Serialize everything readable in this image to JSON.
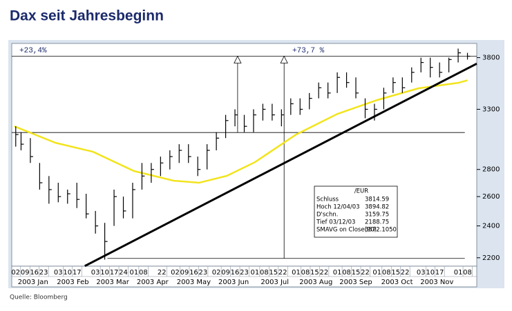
{
  "chart_data": {
    "type": "ohlc",
    "title": "Dax seit Jahresbeginn",
    "source": "Quelle: Bloomberg",
    "log_scale": true,
    "xlim": [
      "2002-12-30",
      "2003-12-15"
    ],
    "ylim": [
      2150,
      3950
    ],
    "yticks": [
      2200,
      2400,
      2600,
      2800,
      3300,
      3800
    ],
    "xticks": [
      {
        "value": "2003-01-02",
        "label": "02"
      },
      {
        "value": "2003-01-09",
        "label": "09"
      },
      {
        "value": "2003-01-16",
        "label": "16"
      },
      {
        "value": "2003-01-23",
        "label": "23"
      },
      {
        "value": "2003-02-03",
        "label": "03"
      },
      {
        "value": "2003-02-10",
        "label": "10"
      },
      {
        "value": "2003-02-17",
        "label": "17"
      },
      {
        "value": "2003-03-03",
        "label": "03"
      },
      {
        "value": "2003-03-10",
        "label": "10"
      },
      {
        "value": "2003-03-17",
        "label": "17"
      },
      {
        "value": "2003-03-24",
        "label": "24"
      },
      {
        "value": "2003-04-01",
        "label": "01"
      },
      {
        "value": "2003-04-08",
        "label": "08"
      },
      {
        "value": "2003-04-22",
        "label": "22"
      },
      {
        "value": "2003-05-02",
        "label": "02"
      },
      {
        "value": "2003-05-09",
        "label": "09"
      },
      {
        "value": "2003-05-16",
        "label": "16"
      },
      {
        "value": "2003-05-23",
        "label": "23"
      },
      {
        "value": "2003-06-02",
        "label": "02"
      },
      {
        "value": "2003-06-09",
        "label": "09"
      },
      {
        "value": "2003-06-16",
        "label": "16"
      },
      {
        "value": "2003-06-23",
        "label": "23"
      },
      {
        "value": "2003-07-01",
        "label": "01"
      },
      {
        "value": "2003-07-08",
        "label": "08"
      },
      {
        "value": "2003-07-15",
        "label": "15"
      },
      {
        "value": "2003-07-22",
        "label": "22"
      },
      {
        "value": "2003-08-01",
        "label": "01"
      },
      {
        "value": "2003-08-08",
        "label": "08"
      },
      {
        "value": "2003-08-15",
        "label": "15"
      },
      {
        "value": "2003-08-22",
        "label": "22"
      },
      {
        "value": "2003-09-01",
        "label": "01"
      },
      {
        "value": "2003-09-08",
        "label": "08"
      },
      {
        "value": "2003-09-15",
        "label": "15"
      },
      {
        "value": "2003-09-22",
        "label": "22"
      },
      {
        "value": "2003-10-01",
        "label": "01"
      },
      {
        "value": "2003-10-08",
        "label": "08"
      },
      {
        "value": "2003-10-15",
        "label": "15"
      },
      {
        "value": "2003-10-22",
        "label": "22"
      },
      {
        "value": "2003-11-03",
        "label": "03"
      },
      {
        "value": "2003-11-10",
        "label": "10"
      },
      {
        "value": "2003-11-17",
        "label": "17"
      },
      {
        "value": "2003-12-01",
        "label": "01"
      },
      {
        "value": "2003-12-08",
        "label": "08"
      }
    ],
    "months": [
      {
        "value": "2003-01-15",
        "label": "2003 Jan"
      },
      {
        "value": "2003-02-14",
        "label": "2003 Feb"
      },
      {
        "value": "2003-03-16",
        "label": "2003 Mar"
      },
      {
        "value": "2003-04-15",
        "label": "2003 Apr"
      },
      {
        "value": "2003-05-16",
        "label": "2003 May"
      },
      {
        "value": "2003-06-15",
        "label": "2003 Jun"
      },
      {
        "value": "2003-07-16",
        "label": "2003 Jul"
      },
      {
        "value": "2003-08-16",
        "label": "2003 Aug"
      },
      {
        "value": "2003-09-15",
        "label": "2003 Sep"
      },
      {
        "value": "2003-10-16",
        "label": "2003 Oct"
      },
      {
        "value": "2003-11-15",
        "label": "2003 Nov"
      }
    ],
    "ohlc": {
      "color": "#000000",
      "x": [
        "2003-01-02",
        "2003-01-06",
        "2003-01-13",
        "2003-01-20",
        "2003-01-27",
        "2003-02-03",
        "2003-02-10",
        "2003-02-17",
        "2003-02-24",
        "2003-03-03",
        "2003-03-10",
        "2003-03-17",
        "2003-03-24",
        "2003-03-31",
        "2003-04-07",
        "2003-04-14",
        "2003-04-21",
        "2003-04-28",
        "2003-05-05",
        "2003-05-12",
        "2003-05-19",
        "2003-05-26",
        "2003-06-02",
        "2003-06-09",
        "2003-06-16",
        "2003-06-23",
        "2003-06-30",
        "2003-07-07",
        "2003-07-14",
        "2003-07-21",
        "2003-07-28",
        "2003-08-04",
        "2003-08-11",
        "2003-08-18",
        "2003-08-25",
        "2003-09-01",
        "2003-09-08",
        "2003-09-15",
        "2003-09-22",
        "2003-09-29",
        "2003-10-06",
        "2003-10-13",
        "2003-10-20",
        "2003-10-27",
        "2003-11-03",
        "2003-11-10",
        "2003-11-17",
        "2003-11-24",
        "2003-12-01",
        "2003-12-08"
      ],
      "high": [
        3150,
        3100,
        3050,
        2850,
        2750,
        2700,
        2650,
        2700,
        2620,
        2500,
        2420,
        2650,
        2600,
        2700,
        2850,
        2850,
        2900,
        2950,
        3000,
        3000,
        2900,
        3000,
        3100,
        3250,
        3300,
        3250,
        3300,
        3350,
        3350,
        3300,
        3400,
        3400,
        3450,
        3550,
        3550,
        3650,
        3650,
        3600,
        3400,
        3350,
        3500,
        3600,
        3600,
        3700,
        3800,
        3800,
        3750,
        3800,
        3894.82,
        3850
      ],
      "low": [
        2980,
        2950,
        2850,
        2650,
        2550,
        2560,
        2550,
        2520,
        2450,
        2350,
        2188.75,
        2400,
        2450,
        2450,
        2650,
        2700,
        2750,
        2800,
        2850,
        2850,
        2750,
        2800,
        2950,
        3050,
        3150,
        3100,
        3100,
        3200,
        3200,
        3150,
        3250,
        3250,
        3300,
        3400,
        3400,
        3450,
        3500,
        3400,
        3220,
        3200,
        3300,
        3450,
        3450,
        3550,
        3650,
        3600,
        3600,
        3650,
        3750,
        3780
      ],
      "close": [
        3080,
        3000,
        2900,
        2700,
        2650,
        2600,
        2620,
        2580,
        2480,
        2400,
        2300,
        2600,
        2500,
        2650,
        2750,
        2800,
        2850,
        2900,
        2950,
        2900,
        2800,
        2950,
        3050,
        3200,
        3250,
        3150,
        3250,
        3300,
        3250,
        3250,
        3350,
        3300,
        3400,
        3500,
        3450,
        3600,
        3550,
        3450,
        3300,
        3300,
        3450,
        3550,
        3500,
        3650,
        3750,
        3700,
        3650,
        3780,
        3850,
        3814.59
      ]
    },
    "sma": {
      "color": "#f2e41c",
      "x": [
        "2003-01-01",
        "2003-02-01",
        "2003-03-01",
        "2003-04-01",
        "2003-05-01",
        "2003-05-20",
        "2003-06-10",
        "2003-07-01",
        "2003-08-01",
        "2003-09-01",
        "2003-10-01",
        "2003-11-01",
        "2003-12-01",
        "2003-12-08"
      ],
      "values": [
        3150,
        3011,
        2939,
        2788,
        2715,
        2700,
        2752,
        2856,
        3080,
        3258,
        3384,
        3494,
        3547,
        3572.105
      ]
    },
    "trendline": {
      "color": "#000000",
      "x": [
        "2003-02-23",
        "2003-12-15"
      ],
      "values": [
        2151,
        3738
      ]
    },
    "hlines": [
      {
        "value": 3815,
        "x": [
          "2002-12-30",
          "2003-12-15"
        ]
      },
      {
        "value": 3097,
        "x": [
          "2002-12-30",
          "2003-12-06"
        ]
      },
      {
        "value": 2196,
        "x": [
          "2003-03-12",
          "2003-12-06"
        ]
      }
    ],
    "arrows": [
      {
        "x": "2003-06-18",
        "from": 3097,
        "to": 3815
      },
      {
        "x": "2003-07-23",
        "from": 2196,
        "to": 3815
      }
    ],
    "annotations": [
      "+23,4%",
      "+73,7 %"
    ],
    "info_box": {
      "header": "/EUR",
      "rows": [
        [
          "Schluss",
          "3814.59"
        ],
        [
          "Hoch 12/04/03",
          "3894.82"
        ],
        [
          "D'schn.",
          "3159.75"
        ],
        [
          "Tief 03/12/03",
          "2188.75"
        ],
        [
          "SMAVG on Close(90)",
          "3572.1050"
        ]
      ]
    }
  }
}
